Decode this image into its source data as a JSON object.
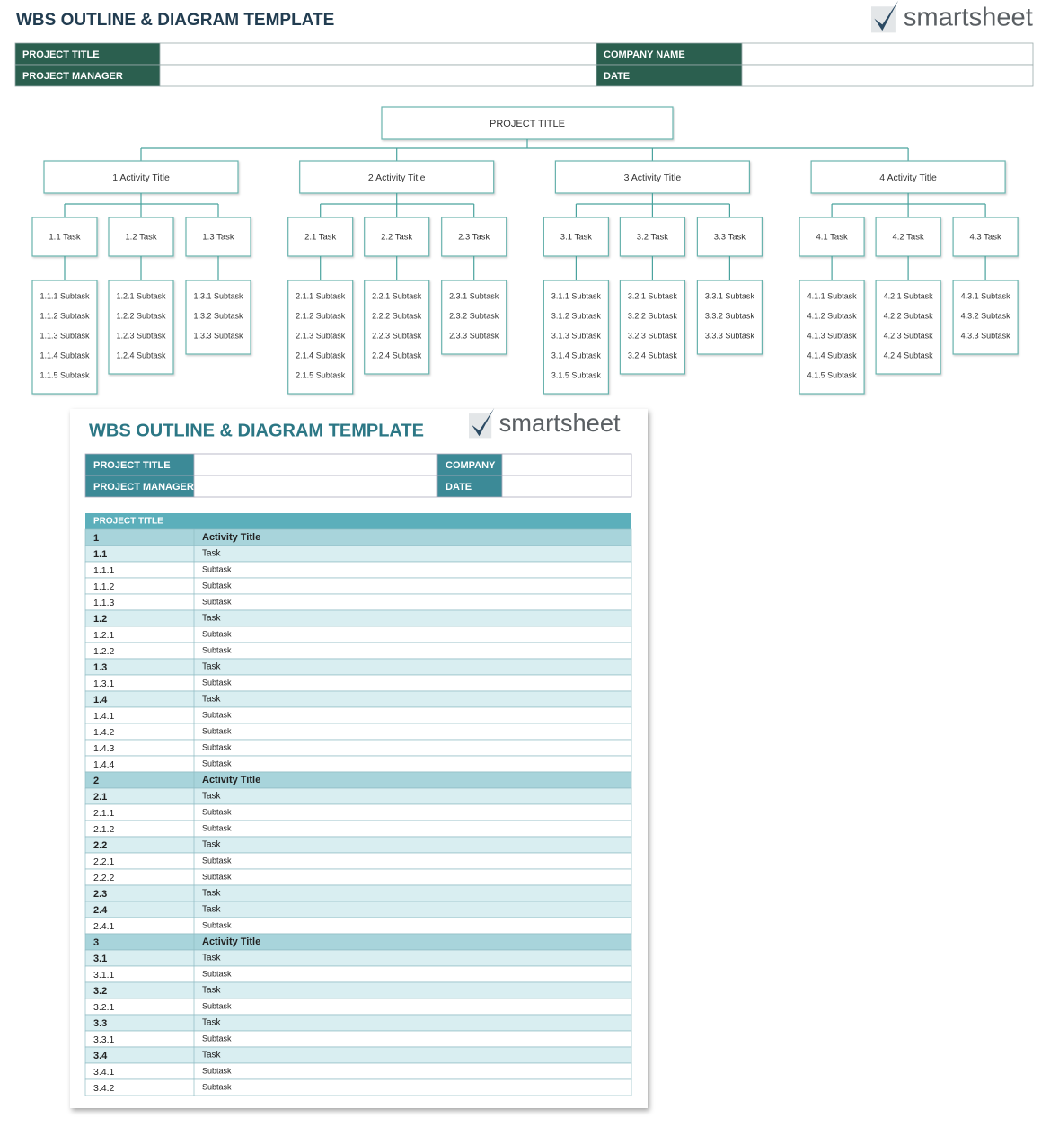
{
  "header": {
    "title": "WBS OUTLINE & DIAGRAM TEMPLATE",
    "logo": "smartsheet",
    "fields": [
      "PROJECT TITLE",
      "PROJECT MANAGER",
      "COMPANY NAME",
      "DATE"
    ]
  },
  "diagram": {
    "root": "PROJECT TITLE",
    "activities": [
      {
        "label": "1 Activity Title",
        "tasks": [
          {
            "label": "1.1 Task",
            "subtasks": [
              "1.1.1 Subtask",
              "1.1.2 Subtask",
              "1.1.3 Subtask",
              "1.1.4 Subtask",
              "1.1.5 Subtask"
            ]
          },
          {
            "label": "1.2 Task",
            "subtasks": [
              "1.2.1 Subtask",
              "1.2.2 Subtask",
              "1.2.3 Subtask",
              "1.2.4 Subtask"
            ]
          },
          {
            "label": "1.3 Task",
            "subtasks": [
              "1.3.1 Subtask",
              "1.3.2 Subtask",
              "1.3.3 Subtask"
            ]
          }
        ]
      },
      {
        "label": "2 Activity Title",
        "tasks": [
          {
            "label": "2.1 Task",
            "subtasks": [
              "2.1.1 Subtask",
              "2.1.2 Subtask",
              "2.1.3 Subtask",
              "2.1.4 Subtask",
              "2.1.5 Subtask"
            ]
          },
          {
            "label": "2.2 Task",
            "subtasks": [
              "2.2.1 Subtask",
              "2.2.2 Subtask",
              "2.2.3 Subtask",
              "2.2.4 Subtask"
            ]
          },
          {
            "label": "2.3 Task",
            "subtasks": [
              "2.3.1 Subtask",
              "2.3.2 Subtask",
              "2.3.3 Subtask"
            ]
          }
        ]
      },
      {
        "label": "3 Activity Title",
        "tasks": [
          {
            "label": "3.1 Task",
            "subtasks": [
              "3.1.1 Subtask",
              "3.1.2 Subtask",
              "3.1.3 Subtask",
              "3.1.4 Subtask",
              "3.1.5 Subtask"
            ]
          },
          {
            "label": "3.2 Task",
            "subtasks": [
              "3.2.1 Subtask",
              "3.2.2 Subtask",
              "3.2.3 Subtask",
              "3.2.4 Subtask"
            ]
          },
          {
            "label": "3.3 Task",
            "subtasks": [
              "3.3.1 Subtask",
              "3.3.2 Subtask",
              "3.3.3 Subtask"
            ]
          }
        ]
      },
      {
        "label": "4 Activity Title",
        "tasks": [
          {
            "label": "4.1 Task",
            "subtasks": [
              "4.1.1 Subtask",
              "4.1.2 Subtask",
              "4.1.3 Subtask",
              "4.1.4 Subtask",
              "4.1.5 Subtask"
            ]
          },
          {
            "label": "4.2 Task",
            "subtasks": [
              "4.2.1 Subtask",
              "4.2.2 Subtask",
              "4.2.3 Subtask",
              "4.2.4 Subtask"
            ]
          },
          {
            "label": "4.3 Task",
            "subtasks": [
              "4.3.1 Subtask",
              "4.3.2 Subtask",
              "4.3.3 Subtask"
            ]
          }
        ]
      }
    ]
  },
  "outline": {
    "title": "WBS OUTLINE & DIAGRAM TEMPLATE",
    "logo": "smartsheet",
    "fields": [
      "PROJECT TITLE",
      "PROJECT MANAGER",
      "COMPANY",
      "DATE"
    ],
    "table_header": "PROJECT TITLE",
    "rows": [
      [
        "1",
        "Activity Title"
      ],
      [
        "1.1",
        "Task"
      ],
      [
        "1.1.1",
        "Subtask"
      ],
      [
        "1.1.2",
        "Subtask"
      ],
      [
        "1.1.3",
        "Subtask"
      ],
      [
        "1.2",
        "Task"
      ],
      [
        "1.2.1",
        "Subtask"
      ],
      [
        "1.2.2",
        "Subtask"
      ],
      [
        "1.3",
        "Task"
      ],
      [
        "1.3.1",
        "Subtask"
      ],
      [
        "1.4",
        "Task"
      ],
      [
        "1.4.1",
        "Subtask"
      ],
      [
        "1.4.2",
        "Subtask"
      ],
      [
        "1.4.3",
        "Subtask"
      ],
      [
        "1.4.4",
        "Subtask"
      ],
      [
        "2",
        "Activity Title"
      ],
      [
        "2.1",
        "Task"
      ],
      [
        "2.1.1",
        "Subtask"
      ],
      [
        "2.1.2",
        "Subtask"
      ],
      [
        "2.2",
        "Task"
      ],
      [
        "2.2.1",
        "Subtask"
      ],
      [
        "2.2.2",
        "Subtask"
      ],
      [
        "2.3",
        "Task"
      ],
      [
        "2.4",
        "Task"
      ],
      [
        "2.4.1",
        "Subtask"
      ],
      [
        "3",
        "Activity Title"
      ],
      [
        "3.1",
        "Task"
      ],
      [
        "3.1.1",
        "Subtask"
      ],
      [
        "3.2",
        "Task"
      ],
      [
        "3.2.1",
        "Subtask"
      ],
      [
        "3.3",
        "Task"
      ],
      [
        "3.3.1",
        "Subtask"
      ],
      [
        "3.4",
        "Task"
      ],
      [
        "3.4.1",
        "Subtask"
      ],
      [
        "3.4.2",
        "Subtask"
      ]
    ]
  }
}
